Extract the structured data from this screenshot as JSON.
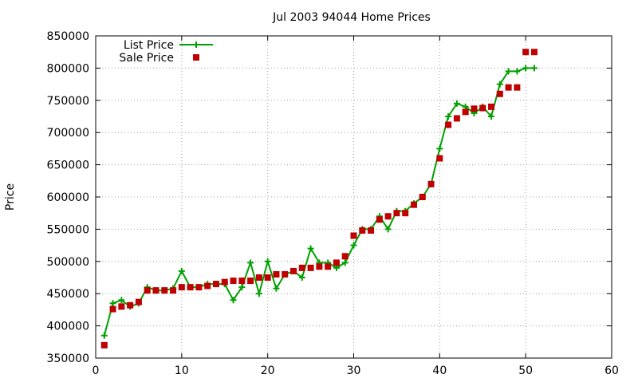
{
  "chart_data": {
    "type": "line",
    "title": "Jul 2003 94044 Home Prices",
    "xlabel": "",
    "ylabel": "Price",
    "xlim": [
      0,
      60
    ],
    "ylim": [
      350000,
      850000
    ],
    "xticks": [
      0,
      10,
      20,
      30,
      40,
      50,
      60
    ],
    "yticks": [
      350000,
      400000,
      450000,
      500000,
      550000,
      600000,
      650000,
      700000,
      750000,
      800000,
      850000
    ],
    "grid": true,
    "legend_position": "top-left",
    "series": [
      {
        "name": "List Price",
        "style": "lines+points",
        "marker": "plus",
        "color": "#00a000",
        "x": [
          1,
          2,
          3,
          4,
          5,
          6,
          7,
          8,
          9,
          10,
          11,
          12,
          13,
          14,
          15,
          16,
          17,
          18,
          19,
          20,
          21,
          22,
          23,
          24,
          25,
          26,
          27,
          28,
          29,
          30,
          31,
          32,
          33,
          34,
          35,
          36,
          37,
          38,
          39,
          40,
          41,
          42,
          43,
          44,
          45,
          46,
          47,
          48,
          49,
          50,
          51
        ],
        "y": [
          385000,
          435000,
          440000,
          430000,
          435000,
          460000,
          455000,
          455000,
          458000,
          485000,
          460000,
          460000,
          465000,
          465000,
          465000,
          440000,
          460000,
          498000,
          450000,
          500000,
          458000,
          480000,
          485000,
          475000,
          520000,
          498000,
          498000,
          490000,
          498000,
          525000,
          550000,
          550000,
          570000,
          550000,
          578000,
          578000,
          590000,
          600000,
          620000,
          675000,
          725000,
          745000,
          740000,
          730000,
          740000,
          725000,
          775000,
          795000,
          795000,
          800000,
          800000
        ]
      },
      {
        "name": "Sale Price",
        "style": "points",
        "marker": "square",
        "color": "#c00000",
        "x": [
          1,
          2,
          3,
          4,
          5,
          6,
          7,
          8,
          9,
          10,
          11,
          12,
          13,
          14,
          15,
          16,
          17,
          18,
          19,
          20,
          21,
          22,
          23,
          24,
          25,
          26,
          27,
          28,
          29,
          30,
          31,
          32,
          33,
          34,
          35,
          36,
          37,
          38,
          39,
          40,
          41,
          42,
          43,
          44,
          45,
          46,
          47,
          48,
          49,
          50,
          51
        ],
        "y": [
          370000,
          426000,
          430000,
          432000,
          437000,
          455000,
          455000,
          455000,
          455000,
          460000,
          460000,
          460000,
          462000,
          465000,
          468000,
          470000,
          470000,
          470000,
          475000,
          475000,
          480000,
          480000,
          485000,
          490000,
          490000,
          492000,
          492000,
          498000,
          508000,
          540000,
          548000,
          548000,
          565000,
          570000,
          575000,
          575000,
          588000,
          600000,
          620000,
          660000,
          712000,
          722000,
          732000,
          737000,
          738000,
          740000,
          760000,
          770000,
          770000,
          825000,
          825000
        ]
      }
    ]
  }
}
